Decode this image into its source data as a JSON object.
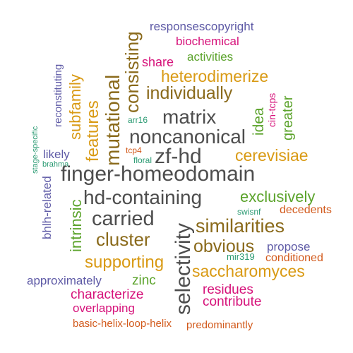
{
  "colors": {
    "purple": "#5e5aa6",
    "magenta": "#d6127a",
    "green": "#5ba32b",
    "gold": "#d99a14",
    "brown": "#8a6a1b",
    "gray": "#4d4d4d",
    "teal": "#2a9a72",
    "orange": "#d25a1c"
  },
  "words": [
    {
      "text": "responsescopyright",
      "color": "purple"
    },
    {
      "text": "biochemical",
      "color": "magenta"
    },
    {
      "text": "activities",
      "color": "green"
    },
    {
      "text": "share",
      "color": "magenta"
    },
    {
      "text": "heterodimerize",
      "color": "gold"
    },
    {
      "text": "individually",
      "color": "brown"
    },
    {
      "text": "matrix",
      "color": "gray"
    },
    {
      "text": "noncanonical",
      "color": "gray"
    },
    {
      "text": "arr16",
      "color": "teal"
    },
    {
      "text": "zf-hd",
      "color": "gray"
    },
    {
      "text": "tcp4",
      "color": "orange"
    },
    {
      "text": "floral",
      "color": "teal"
    },
    {
      "text": "cerevisiae",
      "color": "gold"
    },
    {
      "text": "likely",
      "color": "purple"
    },
    {
      "text": "brahma",
      "color": "teal"
    },
    {
      "text": "finger-homeodomain",
      "color": "gray"
    },
    {
      "text": "hd-containing",
      "color": "gray"
    },
    {
      "text": "exclusively",
      "color": "green"
    },
    {
      "text": "swisnf",
      "color": "teal"
    },
    {
      "text": "decedents",
      "color": "orange"
    },
    {
      "text": "carried",
      "color": "gray"
    },
    {
      "text": "similarities",
      "color": "brown"
    },
    {
      "text": "cluster",
      "color": "brown"
    },
    {
      "text": "obvious",
      "color": "brown"
    },
    {
      "text": "propose",
      "color": "purple"
    },
    {
      "text": "mir319",
      "color": "teal"
    },
    {
      "text": "conditioned",
      "color": "orange"
    },
    {
      "text": "supporting",
      "color": "gold"
    },
    {
      "text": "saccharomyces",
      "color": "gold"
    },
    {
      "text": "approximately",
      "color": "purple"
    },
    {
      "text": "zinc",
      "color": "green"
    },
    {
      "text": "residues",
      "color": "magenta"
    },
    {
      "text": "characterize",
      "color": "magenta"
    },
    {
      "text": "contribute",
      "color": "magenta"
    },
    {
      "text": "overlapping",
      "color": "magenta"
    },
    {
      "text": "basic-helix-loop-helix",
      "color": "orange"
    },
    {
      "text": "predominantly",
      "color": "orange"
    },
    {
      "text": "reconstituting",
      "color": "purple"
    },
    {
      "text": "subfamily",
      "color": "gold"
    },
    {
      "text": "features",
      "color": "gold"
    },
    {
      "text": "mutational",
      "color": "brown"
    },
    {
      "text": "consisting",
      "color": "brown"
    },
    {
      "text": "stage-specific",
      "color": "teal"
    },
    {
      "text": "bhlh-related",
      "color": "purple"
    },
    {
      "text": "intrinsic",
      "color": "green"
    },
    {
      "text": "selectivity",
      "color": "gray"
    },
    {
      "text": "idea",
      "color": "green"
    },
    {
      "text": "cin-tcps",
      "color": "magenta"
    },
    {
      "text": "greater",
      "color": "green"
    }
  ]
}
